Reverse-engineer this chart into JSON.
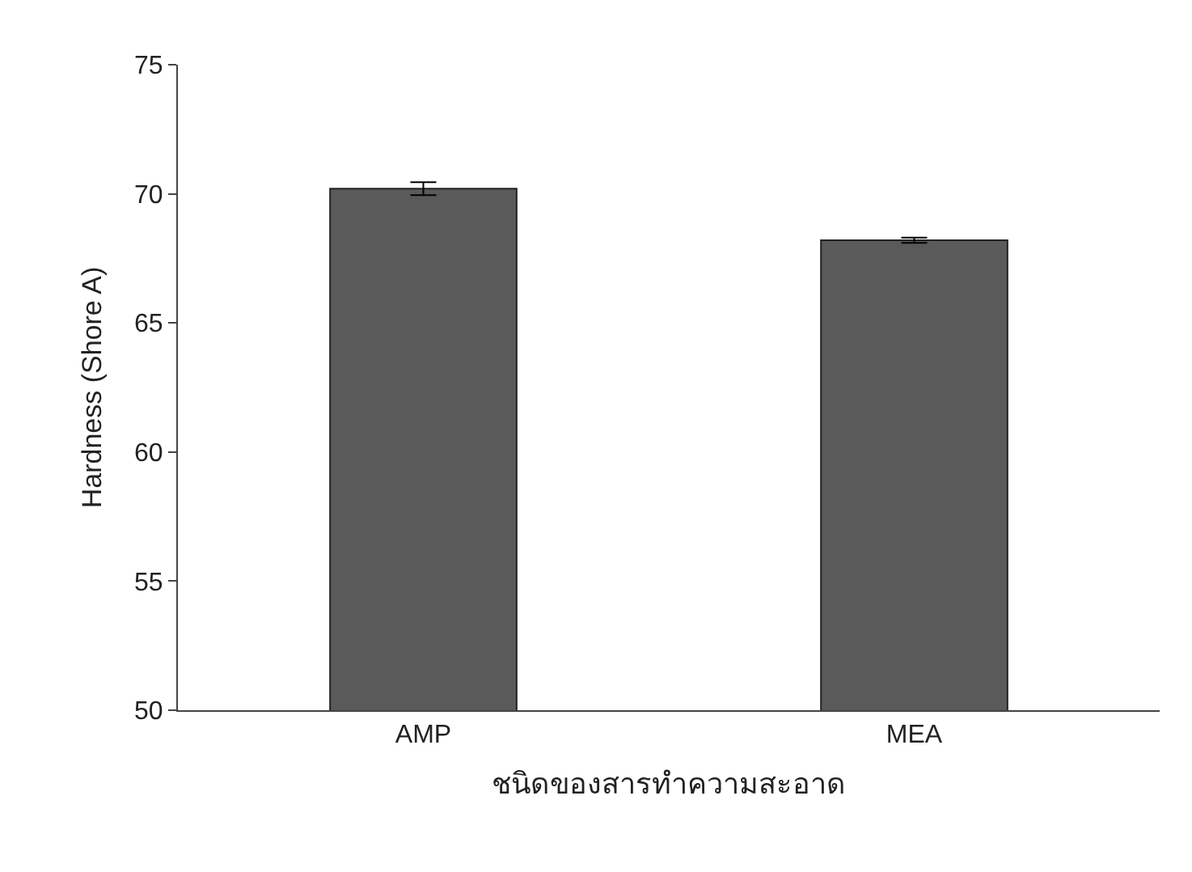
{
  "chart_data": {
    "type": "bar",
    "xlabel": "ชนิดของสารทำความสะอาด",
    "ylabel": "Hardness (Shore A)",
    "categories": [
      "AMP",
      "MEA"
    ],
    "values": [
      70.2,
      68.2
    ],
    "errors": [
      0.25,
      0.1
    ],
    "color": "#5a5a5a",
    "ylim": [
      50,
      75
    ],
    "yticks": [
      50,
      55,
      60,
      65,
      70,
      75
    ]
  }
}
